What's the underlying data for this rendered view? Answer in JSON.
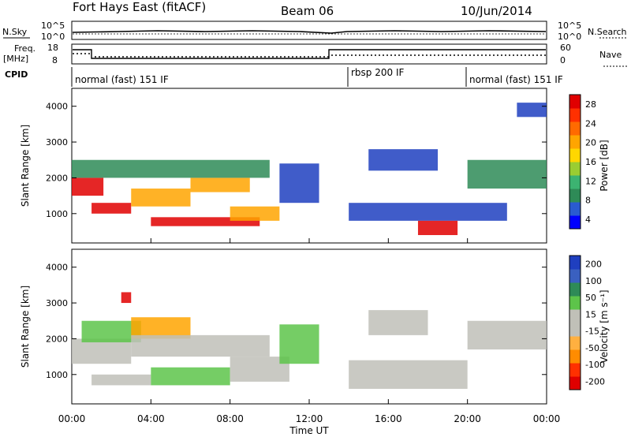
{
  "header": {
    "title": "Fort Hays East (fitACF)",
    "beam": "Beam 06",
    "date": "10/Jun/2014"
  },
  "strips": {
    "nsky_label": "N.Sky",
    "nsearch_label": "N.Search",
    "nsky_ticks": [
      "10^5",
      "10^0"
    ],
    "nsearch_ticks": [
      "10^5",
      "10^0"
    ],
    "freq_label": "Freq.",
    "freq_unit": "[MHz]",
    "freq_ticks": [
      "18",
      "8"
    ],
    "nave_label": "Nave",
    "nave_ticks": [
      "60",
      "0"
    ],
    "cpid_label": "CPID",
    "cpid_segments": [
      {
        "label": "normal (fast) 151 IF",
        "start": 0,
        "end": 14
      },
      {
        "label": "rbsp 200 IF",
        "start": 14,
        "end": 20
      },
      {
        "label": "normal (fast) 151 IF",
        "start": 20,
        "end": 24
      }
    ]
  },
  "chart_data": [
    {
      "type": "heatmap",
      "title": "",
      "xlabel": "Time UT",
      "ylabel": "Slant Range [km]",
      "xlim": [
        0,
        24
      ],
      "ylim": [
        180,
        4500
      ],
      "x_ticks": [
        "00:00",
        "04:00",
        "08:00",
        "12:00",
        "16:00",
        "20:00",
        "00:00"
      ],
      "y_ticks": [
        "1000",
        "2000",
        "3000",
        "4000"
      ],
      "colorbar_label": "Power [dB]",
      "colorbar_ticks": [
        "28",
        "24",
        "20",
        "16",
        "12",
        "8",
        "4"
      ],
      "colorbar_colors": [
        "#0000ff",
        "#2a5bd0",
        "#2e8b57",
        "#3cb371",
        "#9acd32",
        "#ffd700",
        "#ffa500",
        "#ff6a00",
        "#ff3000",
        "#e00000"
      ],
      "colors": {
        "high": "#e00000",
        "mid": "#ffa500",
        "low": "#2e8b57",
        "min": "#1f3fbf"
      },
      "regions": [
        {
          "t0": 0.0,
          "t1": 1.6,
          "r0": 1500,
          "r1": 2000,
          "level": "high"
        },
        {
          "t0": 1.0,
          "t1": 3.0,
          "r0": 1000,
          "r1": 1300,
          "level": "high"
        },
        {
          "t0": 3.0,
          "t1": 6.0,
          "r0": 1200,
          "r1": 1700,
          "level": "mid"
        },
        {
          "t0": 6.0,
          "t1": 9.0,
          "r0": 1600,
          "r1": 2000,
          "level": "mid"
        },
        {
          "t0": 4.0,
          "t1": 9.5,
          "r0": 650,
          "r1": 900,
          "level": "high"
        },
        {
          "t0": 8.0,
          "t1": 10.5,
          "r0": 800,
          "r1": 1200,
          "level": "mid"
        },
        {
          "t0": 0.0,
          "t1": 10.0,
          "r0": 2000,
          "r1": 2500,
          "level": "low"
        },
        {
          "t0": 10.5,
          "t1": 12.5,
          "r0": 1300,
          "r1": 2400,
          "level": "min"
        },
        {
          "t0": 14.0,
          "t1": 22.0,
          "r0": 800,
          "r1": 1300,
          "level": "min"
        },
        {
          "t0": 17.5,
          "t1": 19.5,
          "r0": 400,
          "r1": 800,
          "level": "high"
        },
        {
          "t0": 15.0,
          "t1": 18.5,
          "r0": 2200,
          "r1": 2800,
          "level": "min"
        },
        {
          "t0": 20.0,
          "t1": 24.0,
          "r0": 1700,
          "r1": 2500,
          "level": "low"
        },
        {
          "t0": 22.5,
          "t1": 24.0,
          "r0": 3700,
          "r1": 4100,
          "level": "min"
        }
      ]
    },
    {
      "type": "heatmap",
      "title": "",
      "xlabel": "Time UT",
      "ylabel": "Slant Range [km]",
      "xlim": [
        0,
        24
      ],
      "ylim": [
        180,
        4500
      ],
      "x_ticks": [
        "00:00",
        "04:00",
        "08:00",
        "12:00",
        "16:00",
        "20:00",
        "00:00"
      ],
      "y_ticks": [
        "1000",
        "2000",
        "3000",
        "4000"
      ],
      "colorbar_label": "Velocity [m s⁻¹]",
      "colorbar_ticks": [
        "200",
        "100",
        "50",
        "15",
        "-15",
        "-50",
        "-100",
        "-200"
      ],
      "colorbar_colors": [
        "#e00000",
        "#ff3000",
        "#ff8c00",
        "#ffb040",
        "#c0c0b8",
        "#c0c0b8",
        "#5dc44a",
        "#2e8b57",
        "#3a60c0",
        "#1f3fbf"
      ],
      "colors": {
        "ground": "#c0c0b8",
        "away": "#5dc44a",
        "toward": "#ffa500",
        "strong": "#e00000"
      },
      "regions": [
        {
          "t0": 0.0,
          "t1": 3.0,
          "r0": 1300,
          "r1": 2000,
          "level": "ground"
        },
        {
          "t0": 1.0,
          "t1": 4.0,
          "r0": 700,
          "r1": 1000,
          "level": "ground"
        },
        {
          "t0": 0.5,
          "t1": 3.5,
          "r0": 1900,
          "r1": 2500,
          "level": "away"
        },
        {
          "t0": 3.0,
          "t1": 6.0,
          "r0": 2000,
          "r1": 2600,
          "level": "toward"
        },
        {
          "t0": 3.0,
          "t1": 10.0,
          "r0": 1500,
          "r1": 2100,
          "level": "ground"
        },
        {
          "t0": 4.0,
          "t1": 8.0,
          "r0": 700,
          "r1": 1200,
          "level": "away"
        },
        {
          "t0": 8.0,
          "t1": 11.0,
          "r0": 800,
          "r1": 1500,
          "level": "ground"
        },
        {
          "t0": 10.5,
          "t1": 12.5,
          "r0": 1300,
          "r1": 2400,
          "level": "away"
        },
        {
          "t0": 14.0,
          "t1": 20.0,
          "r0": 600,
          "r1": 1400,
          "level": "ground"
        },
        {
          "t0": 15.0,
          "t1": 18.0,
          "r0": 2100,
          "r1": 2800,
          "level": "ground"
        },
        {
          "t0": 20.0,
          "t1": 24.0,
          "r0": 1700,
          "r1": 2500,
          "level": "ground"
        },
        {
          "t0": 2.5,
          "t1": 3.0,
          "r0": 3000,
          "r1": 3300,
          "level": "strong"
        }
      ]
    }
  ]
}
